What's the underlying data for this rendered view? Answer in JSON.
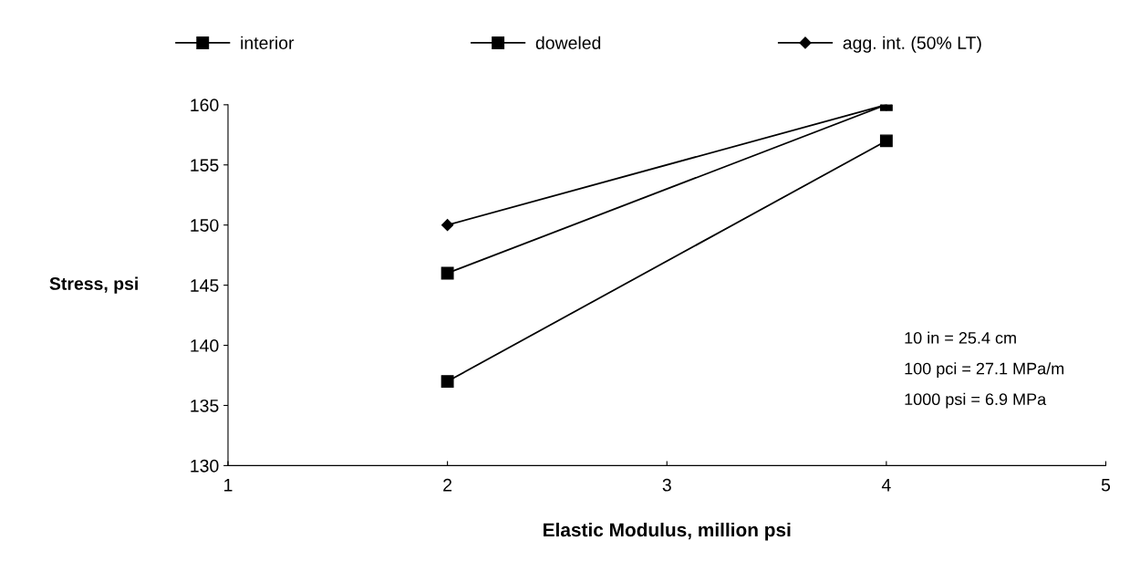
{
  "chart_data": {
    "type": "line",
    "xlabel": "Elastic Modulus, million psi",
    "ylabel": "Stress, psi",
    "x": [
      2,
      4
    ],
    "series": [
      {
        "name": "interior",
        "color": "#000000",
        "values": [
          146,
          160
        ],
        "marker": "square"
      },
      {
        "name": "doweled",
        "color": "#000000",
        "values": [
          137,
          157
        ],
        "marker": "square"
      },
      {
        "name": "agg. int. (50% LT)",
        "color": "#000000",
        "values": [
          150,
          160
        ],
        "marker": "diamond"
      }
    ],
    "xlim": [
      1,
      5
    ],
    "xticks": [
      1,
      2,
      3,
      4,
      5
    ],
    "ylim": [
      130,
      160
    ],
    "yticks": [
      130,
      135,
      140,
      145,
      150,
      155,
      160
    ],
    "annotations": [
      "10 in = 25.4 cm",
      "100 pci = 27.1 MPa/m",
      "1000 psi = 6.9 MPa"
    ],
    "grid": false,
    "legend": "top",
    "line_style": "solid"
  }
}
